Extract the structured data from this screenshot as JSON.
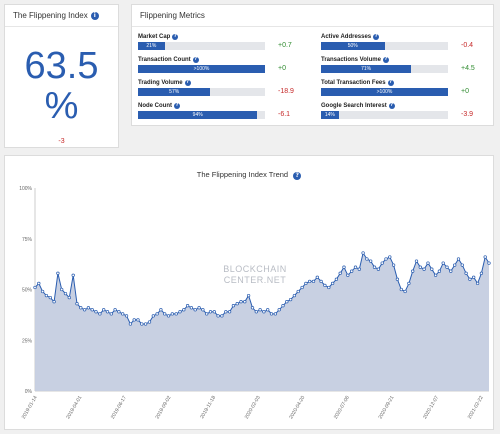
{
  "index_panel": {
    "title": "The Flippening Index",
    "value": "63.5",
    "unit": "%",
    "change": "-3"
  },
  "metrics_panel": {
    "title": "Flippening Metrics",
    "metrics": [
      {
        "label": "Market Cap",
        "bar_text": "21%",
        "fill": 0.21,
        "change": "+0.7",
        "direction": "up"
      },
      {
        "label": "Transaction Count",
        "bar_text": ">100%",
        "fill": 1.0,
        "change": "+0",
        "direction": "up"
      },
      {
        "label": "Trading Volume",
        "bar_text": "57%",
        "fill": 0.57,
        "change": "-18.9",
        "direction": "down"
      },
      {
        "label": "Node Count",
        "bar_text": "94%",
        "fill": 0.94,
        "change": "-6.1",
        "direction": "down"
      },
      {
        "label": "Active Addresses",
        "bar_text": "50%",
        "fill": 0.5,
        "change": "-0.4",
        "direction": "down"
      },
      {
        "label": "Transactions Volume",
        "bar_text": "71%",
        "fill": 0.71,
        "change": "+4.5",
        "direction": "up"
      },
      {
        "label": "Total Transaction Fees",
        "bar_text": ">100%",
        "fill": 1.0,
        "change": "+0",
        "direction": "up"
      },
      {
        "label": "Google Search Interest",
        "bar_text": "14%",
        "fill": 0.14,
        "change": "-3.9",
        "direction": "down"
      }
    ]
  },
  "trend_panel": {
    "title": "The Flippening Index Trend",
    "watermark_line1": "BLOCKCHAIN",
    "watermark_line2": "CENTER.NET"
  },
  "colors": {
    "accent": "#2a5db0",
    "area_fill": "#c5cde0",
    "line": "#2a5db0",
    "positive": "#2e8b2e",
    "negative": "#c62828"
  },
  "icons": {
    "info": "info-circle-icon",
    "help": "question-circle-icon"
  },
  "chart_data": {
    "type": "area",
    "title": "The Flippening Index Trend",
    "xlabel": "",
    "ylabel": "",
    "ylim": [
      0,
      100
    ],
    "yticks": [
      "0%",
      "25%",
      "50%",
      "75%",
      "100%"
    ],
    "xticks": [
      "2019-01-14",
      "2019-04-01",
      "2019-06-17",
      "2019-09-02",
      "2019-11-18",
      "2020-02-03",
      "2020-04-20",
      "2020-07-06",
      "2020-09-21",
      "2020-12-07",
      "2021-02-22"
    ],
    "grid": false,
    "values": [
      51,
      53,
      49,
      47,
      46,
      44,
      58,
      50,
      48,
      46,
      57,
      43,
      41,
      40,
      41,
      40,
      39,
      38,
      40,
      39,
      38,
      40,
      39,
      38,
      37,
      33,
      35,
      35,
      33,
      33,
      34,
      37,
      38,
      40,
      38,
      37,
      38,
      38,
      39,
      40,
      42,
      41,
      40,
      41,
      40,
      38,
      39,
      39,
      37,
      37,
      39,
      39,
      42,
      43,
      44,
      44,
      47,
      41,
      39,
      40,
      39,
      40,
      38,
      38,
      40,
      42,
      44,
      45,
      47,
      49,
      51,
      53,
      54,
      54,
      56,
      54,
      52,
      51,
      53,
      55,
      58,
      61,
      57,
      59,
      61,
      60,
      68,
      65,
      64,
      61,
      60,
      63,
      65,
      66,
      62,
      55,
      50,
      49,
      53,
      59,
      64,
      61,
      60,
      63,
      60,
      57,
      59,
      63,
      61,
      59,
      62,
      65,
      62,
      58,
      55,
      56,
      53,
      58,
      66,
      63
    ]
  }
}
